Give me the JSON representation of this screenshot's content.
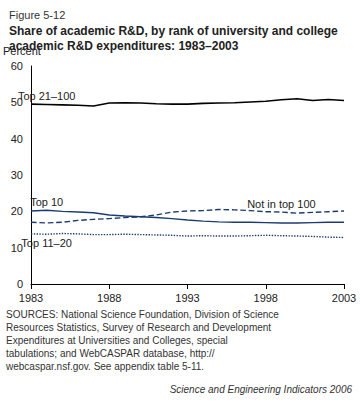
{
  "chart_data": {
    "type": "line",
    "subtitle": "Figure 5-12",
    "title": "Share of academic R&D, by rank of university and college academic R&D expenditures: 1983–2003",
    "y_label": "Percent",
    "x": [
      1983,
      1984,
      1985,
      1986,
      1987,
      1988,
      1989,
      1990,
      1991,
      1992,
      1993,
      1994,
      1995,
      1996,
      1997,
      1998,
      1999,
      2000,
      2001,
      2002,
      2003
    ],
    "xlim": [
      1983,
      2003
    ],
    "xticks": [
      1983,
      1988,
      1993,
      1998,
      2003
    ],
    "ylim": [
      0,
      60
    ],
    "yticks": [
      0,
      10,
      20,
      30,
      40,
      50,
      60
    ],
    "grid": false,
    "series": [
      {
        "name": "Top 21–100",
        "color": "#000000",
        "line_style": "solid",
        "marker": "none",
        "values": [
          49.5,
          49.4,
          49.3,
          49.2,
          49.0,
          49.8,
          49.9,
          49.8,
          49.6,
          49.5,
          49.5,
          49.7,
          49.8,
          49.9,
          50.1,
          50.3,
          50.7,
          51.0,
          50.5,
          50.8,
          50.5
        ]
      },
      {
        "name": "Top 10",
        "color": "#1c3b72",
        "line_style": "solid",
        "marker": "none",
        "values": [
          20.1,
          20.3,
          20.0,
          19.8,
          19.6,
          19.0,
          18.7,
          18.5,
          18.3,
          18.0,
          17.6,
          17.3,
          17.1,
          17.0,
          17.0,
          16.9,
          16.8,
          16.8,
          16.9,
          17.0,
          17.0
        ]
      },
      {
        "name": "Not in top 100",
        "color": "#1c3b72",
        "line_style": "dashed",
        "marker": "none",
        "values": [
          17.0,
          16.8,
          17.0,
          17.5,
          17.8,
          18.0,
          18.3,
          18.5,
          19.0,
          19.8,
          20.1,
          20.2,
          20.5,
          20.4,
          20.2,
          19.9,
          19.8,
          19.5,
          19.7,
          19.9,
          20.1
        ]
      },
      {
        "name": "Top 11–20",
        "color": "#1c3b72",
        "line_style": "dotted",
        "marker": "none",
        "values": [
          13.8,
          13.7,
          13.9,
          13.8,
          13.6,
          13.6,
          13.7,
          13.6,
          13.5,
          13.4,
          13.2,
          13.3,
          13.2,
          13.2,
          13.3,
          13.4,
          13.3,
          13.2,
          13.1,
          12.9,
          12.8
        ]
      }
    ],
    "annotations": [
      "SOURCES: National Science Foundation, Division of Science Resources Statistics, Survey of Research and Development Expenditures at Universities and Colleges, special tabulations; and WebCASPAR database, http://webcaspar.nsf.gov. See appendix table 5-11.",
      "Science and Engineering Indicators 2006"
    ]
  }
}
